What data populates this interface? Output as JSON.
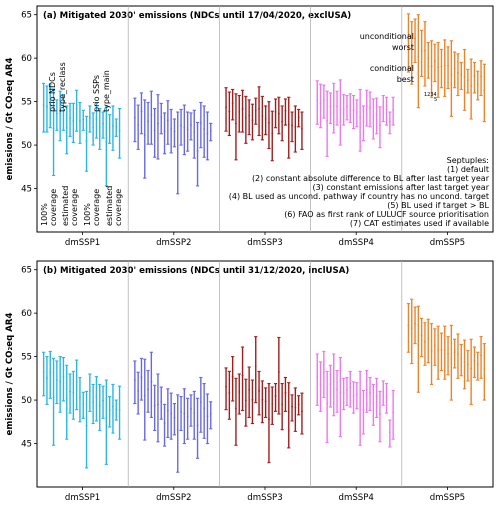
{
  "figure": {
    "ylabel": "emissions / Gt CO₂eq AR4",
    "septuples_title": "Septuples:",
    "septuples": [
      "(1) default",
      "(2) constant absolute difference to BL after last target year",
      "(3) constant emissions after last target year",
      "(4) BL used as uncond. pathway if country has no uncond. target",
      "(5) BL used if target > BL",
      "(6) FAO as first rank of LULUCF source prioritisation",
      "(7) CAT estimates used if available"
    ],
    "group_annotations": [
      {
        "label": "prio NDCs",
        "sub": "type_reclass"
      },
      {
        "label": "prio SSPs",
        "sub": "type_main"
      }
    ],
    "coverage_annotations": [
      {
        "label": "100%",
        "sub": "coverage"
      },
      {
        "label": "estimated",
        "sub": "coverage"
      },
      {
        "label": "100%",
        "sub": "coverage"
      },
      {
        "label": "estimated",
        "sub": "coverage"
      }
    ],
    "range_annotations": {
      "unconditional": "unconditional",
      "worst": "worst",
      "conditional": "conditional",
      "best": "best",
      "digits": "1234",
      "last_digit": "5"
    }
  },
  "colors": {
    "dmSSP1": "#29b6e6",
    "dmSSP2": "#6868e6",
    "dmSSP3": "#a31c1c",
    "dmSSP4": "#ee77ee",
    "dmSSP5": "#ef8229"
  },
  "chart_data": [
    {
      "type": "range-bars",
      "title": "(a) Mitigated 2030' emissions (NDCs until 17/04/2020, exclUSA)",
      "ylabel": "emissions / Gt CO₂eq AR4",
      "categories": [
        "dmSSP1",
        "dmSSP2",
        "dmSSP3",
        "dmSSP4",
        "dmSSP5"
      ],
      "ylim": [
        40,
        66
      ],
      "yticks": [
        45,
        50,
        55,
        60,
        65
      ],
      "series": [
        {
          "name": "dmSSP1",
          "bars": [
            [
              51.5,
              57.1
            ],
            [
              51.5,
              56.8
            ],
            [
              52.0,
              57.0
            ],
            [
              46.5,
              56.3
            ],
            [
              51.7,
              55.2
            ],
            [
              50.5,
              56.2
            ],
            [
              51.7,
              55.8
            ],
            [
              49.0,
              54.5
            ],
            [
              51.0,
              54.8
            ],
            [
              50.3,
              54.8
            ],
            [
              51.6,
              56.3
            ],
            [
              50.2,
              54.9
            ],
            [
              51.7,
              54.0
            ],
            [
              47.0,
              53.3
            ],
            [
              51.5,
              54.5
            ],
            [
              50.0,
              53.7
            ],
            [
              50.8,
              54.8
            ],
            [
              49.5,
              54.2
            ],
            [
              50.8,
              53.8
            ],
            [
              45.3,
              54.5
            ],
            [
              50.2,
              53.5
            ],
            [
              49.4,
              54.5
            ],
            [
              51.0,
              53.0
            ],
            [
              48.5,
              54.2
            ]
          ]
        },
        {
          "name": "dmSSP2",
          "bars": [
            [
              50.4,
              55.4
            ],
            [
              49.5,
              54.6
            ],
            [
              51.3,
              56.0
            ],
            [
              46.2,
              55.2
            ],
            [
              50.1,
              54.9
            ],
            [
              50.1,
              56.2
            ],
            [
              48.6,
              54.2
            ],
            [
              48.4,
              55.8
            ],
            [
              51.3,
              54.8
            ],
            [
              49.0,
              53.7
            ],
            [
              50.1,
              55.1
            ],
            [
              49.1,
              54.1
            ],
            [
              49.8,
              53.0
            ],
            [
              44.4,
              53.8
            ],
            [
              50.0,
              54.1
            ],
            [
              48.9,
              54.6
            ],
            [
              49.3,
              53.8
            ],
            [
              50.6,
              53.7
            ],
            [
              48.5,
              54.0
            ],
            [
              45.3,
              52.6
            ],
            [
              49.7,
              54.9
            ],
            [
              48.6,
              54.5
            ],
            [
              48.3,
              53.8
            ],
            [
              50.5,
              52.5
            ]
          ]
        },
        {
          "name": "dmSSP3",
          "bars": [
            [
              51.6,
              56.6
            ],
            [
              51.1,
              56.1
            ],
            [
              52.9,
              56.4
            ],
            [
              48.3,
              55.9
            ],
            [
              51.5,
              55.7
            ],
            [
              51.5,
              56.3
            ],
            [
              50.2,
              55.6
            ],
            [
              51.2,
              55.2
            ],
            [
              50.6,
              54.7
            ],
            [
              52.4,
              55.4
            ],
            [
              51.1,
              56.7
            ],
            [
              50.6,
              55.6
            ],
            [
              51.2,
              54.5
            ],
            [
              49.6,
              55.0
            ],
            [
              48.2,
              53.9
            ],
            [
              52.0,
              55.3
            ],
            [
              51.3,
              55.5
            ],
            [
              50.5,
              54.5
            ],
            [
              52.3,
              55.3
            ],
            [
              48.5,
              55.5
            ],
            [
              50.4,
              53.8
            ],
            [
              49.2,
              54.5
            ],
            [
              52.1,
              54.1
            ],
            [
              49.5,
              53.8
            ]
          ]
        },
        {
          "name": "dmSSP4",
          "bars": [
            [
              52.4,
              57.4
            ],
            [
              52.0,
              57.0
            ],
            [
              53.1,
              56.9
            ],
            [
              48.7,
              56.2
            ],
            [
              52.5,
              56.0
            ],
            [
              51.4,
              57.1
            ],
            [
              52.3,
              56.2
            ],
            [
              50.0,
              57.5
            ],
            [
              52.3,
              55.8
            ],
            [
              52.9,
              55.7
            ],
            [
              52.6,
              55.9
            ],
            [
              51.9,
              55.7
            ],
            [
              52.1,
              55.2
            ],
            [
              49.3,
              56.4
            ],
            [
              50.5,
              54.5
            ],
            [
              52.2,
              56.3
            ],
            [
              52.1,
              56.1
            ],
            [
              50.7,
              55.3
            ],
            [
              51.3,
              55.4
            ],
            [
              49.7,
              54.4
            ],
            [
              52.7,
              55.7
            ],
            [
              52.3,
              55.5
            ],
            [
              51.3,
              53.8
            ],
            [
              52.3,
              55.5
            ]
          ]
        },
        {
          "name": "dmSSP5",
          "bars": [
            [
              58.4,
              65.1
            ],
            [
              57.0,
              64.2
            ],
            [
              59.5,
              64.5
            ],
            [
              54.3,
              65.0
            ],
            [
              57.9,
              63.2
            ],
            [
              56.8,
              64.2
            ],
            [
              57.7,
              61.8
            ],
            [
              55.5,
              62.0
            ],
            [
              57.3,
              61.6
            ],
            [
              55.5,
              61.8
            ],
            [
              56.6,
              61.0
            ],
            [
              55.6,
              62.1
            ],
            [
              56.5,
              61.3
            ],
            [
              53.3,
              62.0
            ],
            [
              56.6,
              60.7
            ],
            [
              55.7,
              60.5
            ],
            [
              56.4,
              59.5
            ],
            [
              54.0,
              61.0
            ],
            [
              56.0,
              58.7
            ],
            [
              53.0,
              59.9
            ],
            [
              56.0,
              59.5
            ],
            [
              55.2,
              58.5
            ],
            [
              55.7,
              59.7
            ],
            [
              52.7,
              59.3
            ]
          ]
        }
      ]
    },
    {
      "type": "range-bars",
      "title": "(b) Mitigated 2030' emissions (NDCs until 31/12/2020, inclUSA)",
      "ylabel": "emissions / Gt CO₂eq AR4",
      "categories": [
        "dmSSP1",
        "dmSSP2",
        "dmSSP3",
        "dmSSP4",
        "dmSSP5"
      ],
      "ylim": [
        40,
        66
      ],
      "yticks": [
        45,
        50,
        55,
        60,
        65
      ],
      "series": [
        {
          "name": "dmSSP1",
          "bars": [
            [
              50.5,
              55.5
            ],
            [
              49.5,
              55.0
            ],
            [
              50.2,
              55.6
            ],
            [
              44.8,
              54.8
            ],
            [
              49.6,
              54.5
            ],
            [
              48.6,
              55.0
            ],
            [
              49.9,
              54.9
            ],
            [
              45.5,
              54.0
            ],
            [
              48.5,
              53.0
            ],
            [
              47.8,
              53.3
            ],
            [
              48.9,
              54.6
            ],
            [
              47.5,
              52.6
            ],
            [
              47.9,
              50.9
            ],
            [
              42.2,
              51.0
            ],
            [
              48.7,
              53.0
            ],
            [
              47.3,
              51.8
            ],
            [
              47.6,
              52.7
            ],
            [
              46.5,
              51.8
            ],
            [
              47.9,
              51.6
            ],
            [
              42.6,
              52.3
            ],
            [
              46.9,
              50.4
            ],
            [
              46.2,
              51.8
            ],
            [
              47.7,
              50.0
            ],
            [
              45.5,
              51.6
            ]
          ]
        },
        {
          "name": "dmSSP2",
          "bars": [
            [
              49.6,
              54.5
            ],
            [
              48.4,
              53.2
            ],
            [
              50.0,
              54.8
            ],
            [
              45.4,
              54.7
            ],
            [
              48.6,
              53.4
            ],
            [
              48.0,
              55.5
            ],
            [
              46.5,
              51.7
            ],
            [
              45.2,
              53.0
            ],
            [
              47.8,
              51.5
            ],
            [
              44.7,
              49.5
            ],
            [
              45.7,
              51.3
            ],
            [
              45.5,
              50.8
            ],
            [
              46.0,
              49.6
            ],
            [
              41.7,
              50.6
            ],
            [
              46.5,
              50.4
            ],
            [
              45.0,
              51.3
            ],
            [
              45.5,
              50.2
            ],
            [
              47.0,
              50.6
            ],
            [
              45.5,
              51.0
            ],
            [
              43.3,
              50.2
            ],
            [
              46.3,
              52.6
            ],
            [
              45.6,
              51.9
            ],
            [
              45.0,
              50.7
            ],
            [
              46.7,
              49.8
            ]
          ]
        },
        {
          "name": "dmSSP3",
          "bars": [
            [
              48.9,
              53.7
            ],
            [
              47.8,
              53.3
            ],
            [
              49.9,
              55.0
            ],
            [
              44.8,
              52.5
            ],
            [
              48.4,
              53.0
            ],
            [
              48.8,
              56.1
            ],
            [
              47.0,
              52.4
            ],
            [
              48.0,
              53.8
            ],
            [
              47.3,
              52.3
            ],
            [
              49.7,
              57.3
            ],
            [
              48.3,
              53.3
            ],
            [
              47.4,
              52.2
            ],
            [
              48.0,
              51.4
            ],
            [
              42.8,
              51.9
            ],
            [
              47.2,
              51.5
            ],
            [
              48.7,
              51.9
            ],
            [
              48.4,
              57.2
            ],
            [
              46.6,
              51.9
            ],
            [
              48.7,
              52.6
            ],
            [
              44.5,
              52.0
            ],
            [
              47.6,
              50.6
            ],
            [
              46.4,
              51.4
            ],
            [
              48.3,
              50.5
            ],
            [
              46.1,
              50.8
            ]
          ]
        },
        {
          "name": "dmSSP4",
          "bars": [
            [
              49.4,
              55.3
            ],
            [
              48.7,
              54.4
            ],
            [
              50.3,
              55.6
            ],
            [
              45.1,
              53.3
            ],
            [
              49.2,
              54.0
            ],
            [
              48.2,
              55.3
            ],
            [
              48.6,
              53.4
            ],
            [
              45.8,
              54.9
            ],
            [
              48.9,
              52.5
            ],
            [
              49.4,
              52.6
            ],
            [
              49.2,
              53.3
            ],
            [
              48.5,
              52.1
            ],
            [
              49.0,
              52.0
            ],
            [
              44.8,
              53.3
            ],
            [
              46.1,
              51.1
            ],
            [
              48.6,
              53.4
            ],
            [
              48.8,
              52.6
            ],
            [
              47.1,
              51.8
            ],
            [
              48.0,
              52.5
            ],
            [
              45.2,
              51.0
            ],
            [
              49.4,
              52.2
            ],
            [
              48.5,
              51.9
            ],
            [
              44.6,
              47.7
            ],
            [
              45.5,
              51.1
            ]
          ]
        },
        {
          "name": "dmSSP5",
          "bars": [
            [
              55.5,
              61.1
            ],
            [
              54.2,
              61.6
            ],
            [
              56.5,
              60.7
            ],
            [
              50.9,
              60.8
            ],
            [
              55.0,
              59.4
            ],
            [
              54.0,
              58.9
            ],
            [
              54.3,
              59.3
            ],
            [
              51.8,
              58.8
            ],
            [
              54.0,
              58.2
            ],
            [
              52.4,
              58.5
            ],
            [
              53.4,
              57.7
            ],
            [
              52.4,
              58.5
            ],
            [
              52.9,
              57.3
            ],
            [
              50.0,
              58.6
            ],
            [
              53.7,
              57.0
            ],
            [
              52.5,
              57.6
            ],
            [
              52.8,
              56.4
            ],
            [
              51.3,
              56.9
            ],
            [
              52.2,
              55.7
            ],
            [
              49.5,
              57.0
            ],
            [
              52.6,
              56.1
            ],
            [
              52.3,
              55.5
            ],
            [
              52.5,
              57.3
            ],
            [
              50.0,
              56.5
            ]
          ]
        }
      ]
    }
  ]
}
